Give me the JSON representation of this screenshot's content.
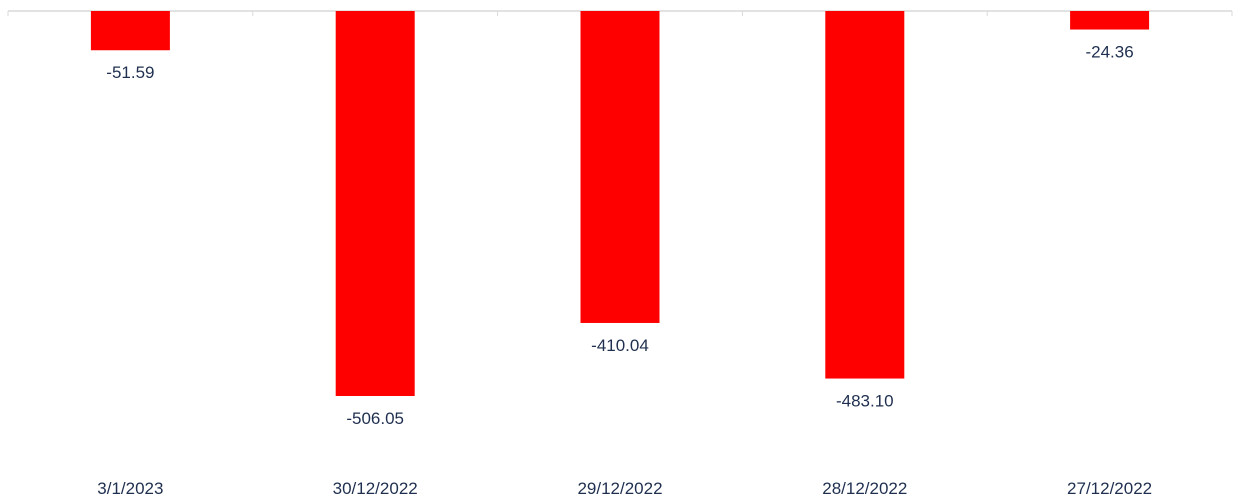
{
  "chart_data": {
    "type": "bar",
    "categories": [
      "3/1/2023",
      "30/12/2022",
      "29/12/2022",
      "28/12/2022",
      "27/12/2022"
    ],
    "values": [
      -51.59,
      -506.05,
      -410.04,
      -483.1,
      -24.36
    ],
    "value_labels": [
      "-51.59",
      "-506.05",
      "-410.04",
      "-483.10",
      "-24.36"
    ],
    "title": "",
    "xlabel": "",
    "ylabel": "",
    "ylim": [
      -506.05,
      0
    ],
    "grid": false,
    "legend": "none",
    "colors": {
      "bar": "#ff0000",
      "label_text": "#1f2f4f",
      "axis": "#d9d9d9"
    }
  }
}
